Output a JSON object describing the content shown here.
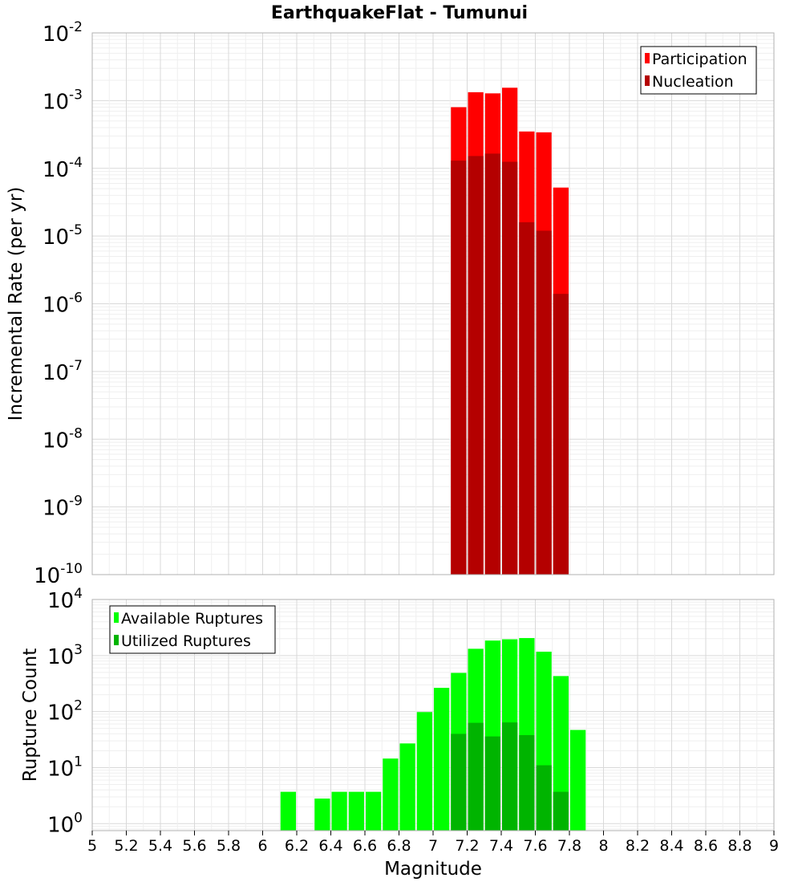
{
  "title": "EarthquakeFlat - Tumunui",
  "colors": {
    "participation": "#ff0000",
    "nucleation": "#b40000",
    "available": "#00ff00",
    "utilized": "#00b400",
    "grid_major": "#d9d9d9",
    "grid_minor": "#efefef"
  },
  "chart_data": [
    {
      "type": "bar",
      "title": "EarthquakeFlat - Tumunui",
      "ylabel": "Incremental Rate (per yr)",
      "yscale": "log",
      "ylim": [
        1e-10,
        0.01
      ],
      "xlim": [
        5,
        9
      ],
      "grid": true,
      "legend_position": "top-right",
      "x": [
        7.1,
        7.2,
        7.3,
        7.4,
        7.5,
        7.6,
        7.7
      ],
      "series": [
        {
          "name": "Participation",
          "values": [
            0.0008,
            0.00133,
            0.00128,
            0.00155,
            0.00035,
            0.00034,
            5.2e-05
          ]
        },
        {
          "name": "Nucleation",
          "values": [
            0.00013,
            0.000152,
            0.000165,
            0.000125,
            1.6e-05,
            1.2e-05,
            1.4e-06
          ]
        }
      ],
      "ytick_exponents": [
        -10,
        -9,
        -8,
        -7,
        -6,
        -5,
        -4,
        -3,
        -2
      ]
    },
    {
      "type": "bar",
      "xlabel": "Magnitude",
      "ylabel": "Rupture Count",
      "yscale": "log",
      "ylim": [
        0.75,
        10000
      ],
      "xlim": [
        5,
        9
      ],
      "grid": true,
      "legend_position": "top-left",
      "series": [
        {
          "name": "Available Ruptures",
          "x": [
            6.1,
            6.3,
            6.4,
            6.5,
            6.6,
            6.7,
            6.8,
            6.9,
            7.0,
            7.1,
            7.2,
            7.3,
            7.4,
            7.5,
            7.6,
            7.7,
            7.8
          ],
          "values": [
            3.7,
            2.8,
            3.7,
            3.7,
            3.7,
            14.5,
            27,
            98,
            265,
            490,
            1320,
            1850,
            1950,
            2050,
            1170,
            430,
            47
          ]
        },
        {
          "name": "Utilized Ruptures",
          "x": [
            7.1,
            7.2,
            7.3,
            7.4,
            7.5,
            7.6,
            7.7
          ],
          "values": [
            40,
            63,
            36,
            64,
            38,
            11,
            3.7
          ]
        }
      ],
      "ytick_exponents": [
        0,
        1,
        2,
        3,
        4
      ],
      "xticks": [
        "5",
        "5.2",
        "5.4",
        "5.6",
        "5.8",
        "6",
        "6.2",
        "6.4",
        "6.6",
        "6.8",
        "7",
        "7.2",
        "7.4",
        "7.6",
        "7.8",
        "8",
        "8.2",
        "8.4",
        "8.6",
        "8.8",
        "9"
      ]
    }
  ]
}
